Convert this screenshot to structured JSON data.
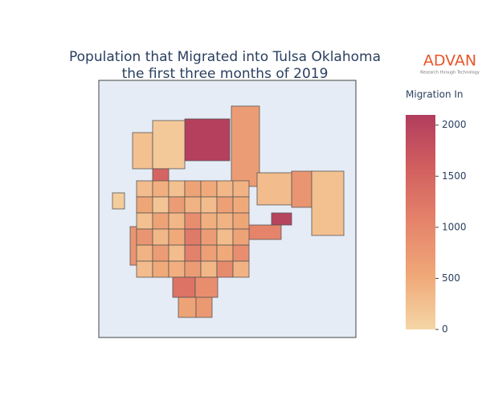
{
  "chart_data": {
    "type": "choropleth",
    "title_lines": [
      "Population that Migrated into Tulsa Oklahoma",
      "the first three months of 2019"
    ],
    "colorbar_title": "Migration In",
    "zlim": [
      0,
      2100
    ],
    "zticks": [
      0,
      500,
      1000,
      1500,
      2000
    ],
    "colorscale": [
      "#f5d6a6",
      "#f0a878",
      "#e5846b",
      "#d2605f",
      "#b13d5d"
    ],
    "logo": {
      "name": "ADVAN",
      "tagline": "Research through Technology"
    },
    "values": [
      700,
      2050,
      800,
      250,
      2000,
      300,
      1050,
      250,
      150,
      1500,
      800,
      100,
      300,
      450,
      250,
      600,
      500,
      350,
      400,
      550,
      200,
      700,
      400,
      300,
      650,
      500,
      250,
      600,
      350,
      900,
      450,
      400,
      550,
      800,
      350,
      500,
      1200,
      700,
      300,
      600,
      400,
      700,
      300,
      1100,
      650,
      500,
      900,
      300,
      500,
      450,
      700,
      350,
      950,
      400,
      1300,
      900,
      600,
      750
    ]
  }
}
